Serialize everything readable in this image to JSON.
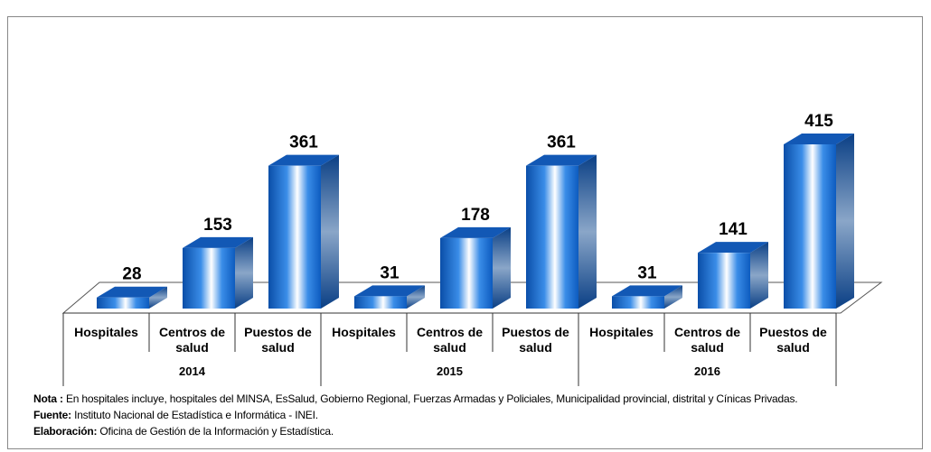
{
  "chart_data": {
    "type": "bar3d",
    "categories": [
      "Hospitales",
      "Centros de salud",
      "Puestos de salud",
      "Hospitales",
      "Centros de salud",
      "Puestos de salud",
      "Hospitales",
      "Centros de salud",
      "Puestos de salud"
    ],
    "groups": [
      {
        "label": "2014",
        "size": 3
      },
      {
        "label": "2015",
        "size": 3
      },
      {
        "label": "2016",
        "size": 3
      }
    ],
    "values": [
      28,
      153,
      361,
      31,
      178,
      361,
      31,
      141,
      415
    ],
    "color": "#0d5bbf"
  },
  "notes": [
    {
      "label": "Nota :",
      "text": "En hospitales  incluye, hospitales del MINSA, EsSalud, Gobierno Regional, Fuerzas Armadas y Policiales, Municipalidad provincial, distrital y Cínicas Privadas."
    },
    {
      "label": "Fuente:",
      "text": "Instituto Nacional de Estadística e Informática - INEI."
    },
    {
      "label": "Elaboración:",
      "text": "Oficina de Gestión de la Información y Estadística."
    }
  ]
}
